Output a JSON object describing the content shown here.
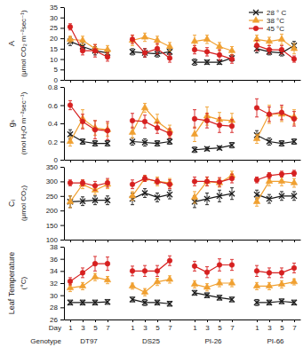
{
  "chart_data": [
    {
      "type": "line",
      "ylabel": [
        "A",
        "(μmol CO₂ m⁻²sec⁻¹)"
      ],
      "categories": [
        "1",
        "3",
        "5",
        "7",
        null,
        "1",
        "3",
        "5",
        "7",
        null,
        "1",
        "3",
        "5",
        "7",
        null,
        "1",
        "3",
        "5",
        "7"
      ],
      "ylim": [
        0,
        35
      ],
      "yticks": [
        0,
        5,
        10,
        15,
        20,
        25,
        30,
        35
      ],
      "tick_labels": "y",
      "legend": "upper right",
      "series": [
        {
          "name": "28 ° C",
          "color": "#1a1a1a",
          "marker": "x",
          "values": [
            18.5,
            16,
            14,
            13,
            null,
            13.5,
            13,
            12.5,
            13.5,
            null,
            8.5,
            8.5,
            8.5,
            10.5,
            null,
            15,
            13.5,
            13,
            16.5
          ],
          "errors": [
            2,
            2,
            2,
            1.5,
            null,
            1.5,
            2,
            1.5,
            1.5,
            null,
            1.5,
            1,
            1,
            1.5,
            null,
            2,
            1.5,
            1.5,
            2
          ]
        },
        {
          "name": "38 °C",
          "color": "#f0a030",
          "marker": "triangle",
          "values": [
            19.5,
            19,
            15,
            14.5,
            null,
            19,
            20.5,
            19,
            16,
            null,
            18.5,
            19.5,
            16,
            14,
            null,
            19.5,
            18.5,
            19.5,
            15
          ],
          "errors": [
            1.5,
            2,
            2,
            2,
            null,
            2.5,
            2,
            2,
            2,
            null,
            3,
            2,
            2,
            2,
            null,
            2,
            2,
            2.5,
            2.5
          ]
        },
        {
          "name": "45 °C",
          "color": "#d62020",
          "marker": "circle",
          "values": [
            25.5,
            14,
            14,
            11,
            null,
            19.5,
            13,
            15,
            10.5,
            null,
            14.5,
            13.5,
            12,
            10,
            null,
            16.5,
            14.5,
            14.5,
            10
          ],
          "errors": [
            1.5,
            2,
            3,
            2,
            null,
            2,
            2,
            2.5,
            2,
            null,
            2,
            2,
            2.5,
            2,
            null,
            2.5,
            2,
            2,
            1.5
          ]
        }
      ]
    },
    {
      "type": "line",
      "ylabel": [
        "gₛ",
        "(mol H₂O m⁻²sec⁻¹)"
      ],
      "categories": [
        "1",
        "3",
        "5",
        "7",
        null,
        "1",
        "3",
        "5",
        "7",
        null,
        "1",
        "3",
        "5",
        "7",
        null,
        "1",
        "3",
        "5",
        "7"
      ],
      "ylim": [
        0,
        0.8
      ],
      "yticks": [
        0,
        0.2,
        0.4,
        0.6,
        0.8
      ],
      "tick_labels": "y",
      "series": [
        {
          "color": "#1a1a1a",
          "marker": "x",
          "values": [
            0.28,
            0.2,
            0.18,
            0.18,
            null,
            0.2,
            0.19,
            0.18,
            0.2,
            null,
            0.11,
            0.12,
            0.13,
            0.16,
            null,
            0.27,
            0.2,
            0.18,
            0.2
          ],
          "errors": [
            0.05,
            0.03,
            0.03,
            0.03,
            null,
            0.04,
            0.04,
            0.03,
            0.03,
            null,
            0.03,
            0.02,
            0.02,
            0.03,
            null,
            0.05,
            0.04,
            0.03,
            0.03
          ]
        },
        {
          "color": "#f0a030",
          "marker": "triangle",
          "values": [
            0.2,
            0.45,
            0.35,
            0.33,
            null,
            0.3,
            0.57,
            0.42,
            0.32,
            null,
            0.28,
            0.48,
            0.44,
            0.43,
            null,
            0.23,
            0.5,
            0.5,
            0.47
          ],
          "errors": [
            0.05,
            0.1,
            0.08,
            0.07,
            null,
            0.06,
            0.05,
            0.08,
            0.06,
            null,
            0.08,
            0.1,
            0.08,
            0.08,
            null,
            0.05,
            0.1,
            0.08,
            0.08
          ]
        },
        {
          "color": "#d62020",
          "marker": "circle",
          "values": [
            0.6,
            0.42,
            0.33,
            0.32,
            null,
            0.43,
            0.42,
            0.35,
            0.29,
            null,
            0.45,
            0.43,
            0.38,
            0.37,
            null,
            0.57,
            0.5,
            0.52,
            0.45
          ],
          "errors": [
            0.05,
            0.08,
            0.1,
            0.1,
            null,
            0.08,
            0.07,
            0.06,
            0.05,
            null,
            0.1,
            0.08,
            0.08,
            0.07,
            null,
            0.1,
            0.08,
            0.08,
            0.08
          ]
        }
      ]
    },
    {
      "type": "line",
      "ylabel": [
        "Cᵢ",
        "(μmol CO₂)"
      ],
      "categories": [
        "1",
        "3",
        "5",
        "7",
        null,
        "1",
        "3",
        "5",
        "7",
        null,
        "1",
        "3",
        "5",
        "7",
        null,
        "1",
        "3",
        "5",
        "7"
      ],
      "ylim": [
        100,
        350
      ],
      "yticks": [
        100,
        150,
        200,
        250,
        300,
        350
      ],
      "tick_labels": "y",
      "series": [
        {
          "color": "#1a1a1a",
          "marker": "x",
          "values": [
            230,
            232,
            235,
            235,
            null,
            240,
            260,
            245,
            255,
            null,
            230,
            240,
            250,
            258,
            null,
            255,
            240,
            250,
            250
          ],
          "errors": [
            20,
            15,
            15,
            15,
            null,
            20,
            15,
            15,
            15,
            null,
            20,
            20,
            20,
            20,
            null,
            15,
            15,
            15,
            15
          ]
        },
        {
          "color": "#f0a030",
          "marker": "triangle",
          "values": [
            230,
            290,
            270,
            290,
            null,
            250,
            310,
            300,
            295,
            null,
            245,
            300,
            295,
            320,
            null,
            230,
            300,
            300,
            295
          ],
          "errors": [
            20,
            15,
            15,
            15,
            null,
            15,
            10,
            15,
            15,
            null,
            20,
            15,
            15,
            15,
            null,
            15,
            15,
            15,
            15
          ]
        },
        {
          "color": "#d62020",
          "marker": "circle",
          "values": [
            295,
            295,
            285,
            295,
            null,
            290,
            310,
            300,
            290,
            null,
            300,
            300,
            298,
            310,
            null,
            305,
            320,
            325,
            328
          ],
          "errors": [
            10,
            10,
            15,
            15,
            null,
            15,
            10,
            10,
            15,
            null,
            15,
            15,
            15,
            15,
            null,
            10,
            10,
            10,
            10
          ]
        }
      ]
    },
    {
      "type": "line",
      "ylabel": [
        "Leaf Temperature",
        "(°C)"
      ],
      "categories": [
        "1",
        "3",
        "5",
        "7",
        null,
        "1",
        "3",
        "5",
        "7",
        null,
        "1",
        "3",
        "5",
        "7",
        null,
        "1",
        "3",
        "5",
        "7"
      ],
      "xlabel": "Day",
      "group_label": "Genotype",
      "groups": [
        "DT97",
        "DS25",
        "PI-26",
        "PI-66"
      ],
      "ylim": [
        26,
        38
      ],
      "yticks": [
        26,
        28,
        30,
        32,
        34,
        36,
        38
      ],
      "series": [
        {
          "color": "#1a1a1a",
          "marker": "x",
          "values": [
            28.8,
            28.8,
            28.8,
            28.9,
            null,
            29.3,
            28.8,
            28.8,
            28.6,
            null,
            30.4,
            30,
            29.6,
            29.3,
            null,
            28.8,
            28.8,
            29,
            28.8
          ],
          "errors": [
            0.4,
            0.4,
            0.4,
            0.4,
            null,
            0.4,
            0.5,
            0.4,
            0.4,
            null,
            0.4,
            0.4,
            0.4,
            0.4,
            null,
            0.5,
            0.4,
            0.4,
            0.4
          ]
        },
        {
          "color": "#f0a030",
          "marker": "triangle",
          "values": [
            31.2,
            31.5,
            33,
            32.5,
            null,
            31.5,
            30.5,
            32.2,
            32.6,
            null,
            31.8,
            31.3,
            32,
            32,
            null,
            31.5,
            31.5,
            31.8,
            32.2
          ],
          "errors": [
            0.6,
            0.6,
            0.6,
            0.6,
            null,
            0.5,
            0.6,
            0.6,
            0.6,
            null,
            0.6,
            0.6,
            0.6,
            0.6,
            null,
            0.6,
            0.6,
            0.6,
            0.5
          ]
        },
        {
          "color": "#d62020",
          "marker": "circle",
          "values": [
            32.3,
            33.7,
            35.2,
            35.2,
            null,
            34,
            34,
            34,
            35.7,
            null,
            34.8,
            33.8,
            35,
            35,
            null,
            34,
            33.7,
            33.7,
            34.5
          ],
          "errors": [
            0.6,
            0.8,
            1.2,
            1.1,
            null,
            0.8,
            0.9,
            0.9,
            0.8,
            null,
            0.8,
            0.9,
            1,
            0.9,
            null,
            0.9,
            0.8,
            0.8,
            0.8
          ]
        }
      ]
    }
  ]
}
